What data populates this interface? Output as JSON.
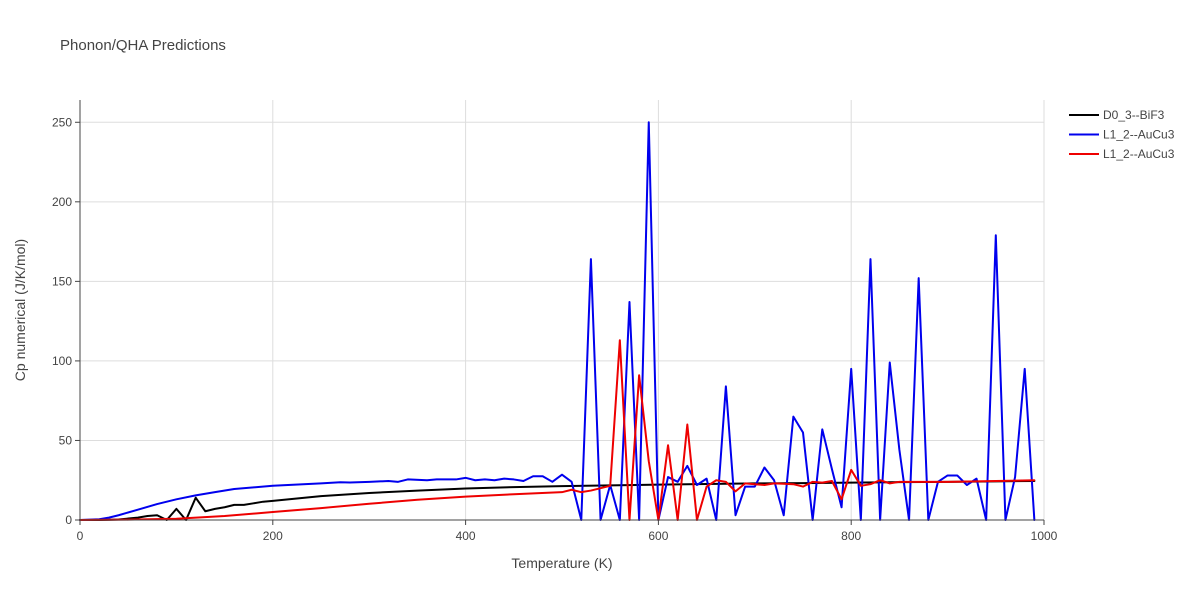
{
  "chart_data": {
    "type": "line",
    "title": "Phonon/QHA Predictions",
    "xlabel": "Temperature (K)",
    "ylabel": "Cp numerical (J/K/mol)",
    "xlim": [
      0,
      1000
    ],
    "ylim": [
      0,
      264
    ],
    "xticks": [
      0,
      200,
      400,
      600,
      800,
      1000
    ],
    "yticks": [
      0,
      50,
      100,
      150,
      200,
      250
    ],
    "grid": true,
    "legend_position": "top-right",
    "series": [
      {
        "name": "D0_3--BiF3",
        "color": "#000000",
        "points": [
          [
            0,
            0
          ],
          [
            20,
            0
          ],
          [
            40,
            0.3
          ],
          [
            60,
            1.5
          ],
          [
            70,
            2.5
          ],
          [
            80,
            3
          ],
          [
            90,
            0
          ],
          [
            100,
            7
          ],
          [
            110,
            0
          ],
          [
            120,
            14
          ],
          [
            130,
            5.5
          ],
          [
            140,
            7
          ],
          [
            150,
            8
          ],
          [
            160,
            9.5
          ],
          [
            170,
            9.5
          ],
          [
            180,
            10.5
          ],
          [
            190,
            11.5
          ],
          [
            200,
            12
          ],
          [
            250,
            15
          ],
          [
            300,
            17
          ],
          [
            350,
            18.5
          ],
          [
            400,
            19.8
          ],
          [
            450,
            20.7
          ],
          [
            500,
            21.3
          ],
          [
            550,
            21.8
          ],
          [
            600,
            22.2
          ],
          [
            650,
            22.6
          ],
          [
            700,
            23
          ],
          [
            750,
            23.2
          ],
          [
            800,
            23.5
          ],
          [
            850,
            23.8
          ],
          [
            900,
            24
          ],
          [
            950,
            24.3
          ],
          [
            990,
            24.5
          ]
        ]
      },
      {
        "name": "L1_2--AuCu3",
        "color": "#0000ee",
        "points": [
          [
            0,
            0
          ],
          [
            20,
            0.5
          ],
          [
            30,
            1.5
          ],
          [
            40,
            3
          ],
          [
            60,
            6.5
          ],
          [
            80,
            10
          ],
          [
            100,
            13
          ],
          [
            120,
            15.5
          ],
          [
            140,
            17.5
          ],
          [
            160,
            19.5
          ],
          [
            200,
            21.5
          ],
          [
            250,
            23
          ],
          [
            270,
            23.7
          ],
          [
            280,
            23.6
          ],
          [
            300,
            24
          ],
          [
            320,
            24.5
          ],
          [
            330,
            24
          ],
          [
            340,
            25.5
          ],
          [
            360,
            25
          ],
          [
            370,
            25.5
          ],
          [
            390,
            25.5
          ],
          [
            400,
            26.5
          ],
          [
            410,
            25
          ],
          [
            420,
            25.5
          ],
          [
            430,
            25
          ],
          [
            440,
            26
          ],
          [
            450,
            25.5
          ],
          [
            460,
            24.5
          ],
          [
            470,
            27.5
          ],
          [
            480,
            27.5
          ],
          [
            490,
            24
          ],
          [
            500,
            28.5
          ],
          [
            510,
            24
          ],
          [
            520,
            0
          ],
          [
            530,
            164
          ],
          [
            540,
            0
          ],
          [
            550,
            22
          ],
          [
            560,
            0
          ],
          [
            570,
            137
          ],
          [
            580,
            0
          ],
          [
            590,
            250
          ],
          [
            600,
            0
          ],
          [
            610,
            27
          ],
          [
            620,
            24
          ],
          [
            630,
            34
          ],
          [
            640,
            22
          ],
          [
            650,
            26
          ],
          [
            660,
            0
          ],
          [
            670,
            84
          ],
          [
            680,
            3
          ],
          [
            690,
            21
          ],
          [
            700,
            21
          ],
          [
            710,
            33
          ],
          [
            720,
            25
          ],
          [
            730,
            3
          ],
          [
            740,
            65
          ],
          [
            750,
            55
          ],
          [
            760,
            0
          ],
          [
            770,
            57
          ],
          [
            780,
            32
          ],
          [
            790,
            8
          ],
          [
            800,
            95
          ],
          [
            810,
            0
          ],
          [
            820,
            164
          ],
          [
            830,
            0
          ],
          [
            840,
            99
          ],
          [
            850,
            44
          ],
          [
            860,
            0
          ],
          [
            870,
            152
          ],
          [
            880,
            0
          ],
          [
            890,
            24
          ],
          [
            900,
            28
          ],
          [
            910,
            28
          ],
          [
            920,
            22
          ],
          [
            930,
            26
          ],
          [
            940,
            0
          ],
          [
            950,
            179
          ],
          [
            960,
            0
          ],
          [
            970,
            27
          ],
          [
            980,
            95
          ],
          [
            990,
            0
          ]
        ]
      },
      {
        "name": "L1_2--AuCu3",
        "color": "#ee0000",
        "points": [
          [
            0,
            0
          ],
          [
            50,
            0.2
          ],
          [
            100,
            0.8
          ],
          [
            150,
            2.5
          ],
          [
            200,
            5
          ],
          [
            250,
            7.5
          ],
          [
            300,
            10.2
          ],
          [
            350,
            12.7
          ],
          [
            400,
            14.7
          ],
          [
            450,
            16.2
          ],
          [
            500,
            17.5
          ],
          [
            510,
            19
          ],
          [
            520,
            17.5
          ],
          [
            530,
            18.5
          ],
          [
            540,
            20
          ],
          [
            550,
            21.5
          ],
          [
            560,
            113
          ],
          [
            570,
            0
          ],
          [
            580,
            91
          ],
          [
            590,
            37
          ],
          [
            600,
            0
          ],
          [
            610,
            47
          ],
          [
            620,
            0
          ],
          [
            630,
            60
          ],
          [
            640,
            0
          ],
          [
            650,
            21
          ],
          [
            660,
            25
          ],
          [
            670,
            24
          ],
          [
            680,
            18
          ],
          [
            690,
            23
          ],
          [
            700,
            22.5
          ],
          [
            710,
            22
          ],
          [
            720,
            23
          ],
          [
            730,
            22.8
          ],
          [
            740,
            22.5
          ],
          [
            750,
            21
          ],
          [
            760,
            24
          ],
          [
            770,
            23.5
          ],
          [
            780,
            24.5
          ],
          [
            790,
            13
          ],
          [
            800,
            31.5
          ],
          [
            810,
            21.5
          ],
          [
            820,
            22.5
          ],
          [
            830,
            25
          ],
          [
            840,
            23
          ],
          [
            850,
            24
          ],
          [
            870,
            24
          ],
          [
            900,
            24
          ],
          [
            950,
            24.5
          ],
          [
            990,
            25
          ]
        ]
      }
    ]
  }
}
